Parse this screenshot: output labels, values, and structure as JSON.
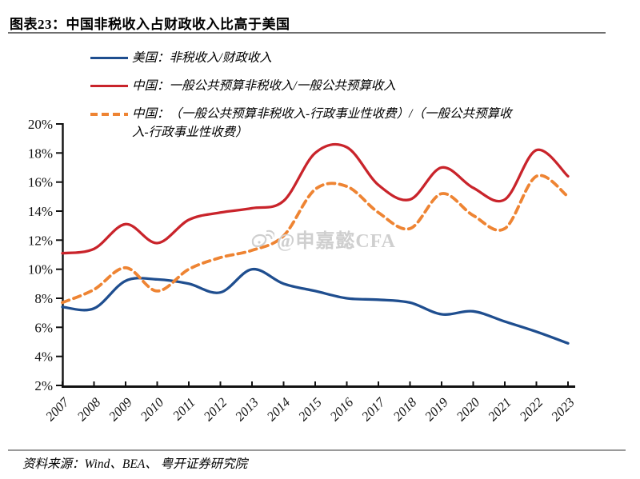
{
  "header": {
    "title": "图表23：中国非税收入占财政收入比高于美国"
  },
  "legend": {
    "items": [
      {
        "label": "美国：非税收入/财政收入",
        "color": "#1f4e8f",
        "line_style": "solid"
      },
      {
        "label": "中国：一般公共预算非税收入/一般公共预算收入",
        "color": "#c9242b",
        "line_style": "solid"
      },
      {
        "label": "中国：（一般公共预算非税收入-行政事业性收费）/（一般公共预算收入-行政事业性收费）",
        "color": "#ee8433",
        "line_style": "dashed"
      }
    ]
  },
  "watermark": {
    "icon": "weibo-icon",
    "text": "@申嘉懿CFA"
  },
  "footer": {
    "source": "资料来源：Wind、BEA、 粤开证券研究院"
  },
  "chart_data": {
    "type": "line",
    "title": "图表23：中国非税收入占财政收入比高于美国",
    "categories": [
      "2007",
      "2008",
      "2009",
      "2010",
      "2011",
      "2012",
      "2013",
      "2014",
      "2015",
      "2016",
      "2017",
      "2018",
      "2019",
      "2020",
      "2021",
      "2022",
      "2023"
    ],
    "series": [
      {
        "name": "美国：非税收入/财政收入",
        "color": "#1f4e8f",
        "style": "solid",
        "values": [
          7.4,
          7.3,
          9.2,
          9.3,
          9.0,
          8.4,
          10.0,
          9.0,
          8.5,
          8.0,
          7.9,
          7.7,
          6.9,
          7.1,
          6.4,
          5.7,
          4.9
        ]
      },
      {
        "name": "中国：一般公共预算非税收入/一般公共预算收入",
        "color": "#c9242b",
        "style": "solid",
        "values": [
          11.1,
          11.4,
          13.1,
          11.8,
          13.4,
          13.9,
          14.2,
          14.7,
          18.0,
          18.4,
          15.8,
          14.8,
          17.0,
          15.6,
          14.8,
          18.2,
          16.4
        ]
      },
      {
        "name": "中国：（一般公共预算非税收入-行政事业性收费）/（一般公共预算收入-行政事业性收费）",
        "color": "#ee8433",
        "style": "dashed",
        "values": [
          7.7,
          8.6,
          10.1,
          8.5,
          10.0,
          10.8,
          11.3,
          12.3,
          15.5,
          15.7,
          13.9,
          12.8,
          15.2,
          13.7,
          12.8,
          16.4,
          15.0
        ]
      }
    ],
    "ylim": [
      2,
      20
    ],
    "ytick_step": 2,
    "ytick_format": "percent",
    "grid": false,
    "legend_position": "top-left",
    "xlabel": "",
    "ylabel": ""
  }
}
